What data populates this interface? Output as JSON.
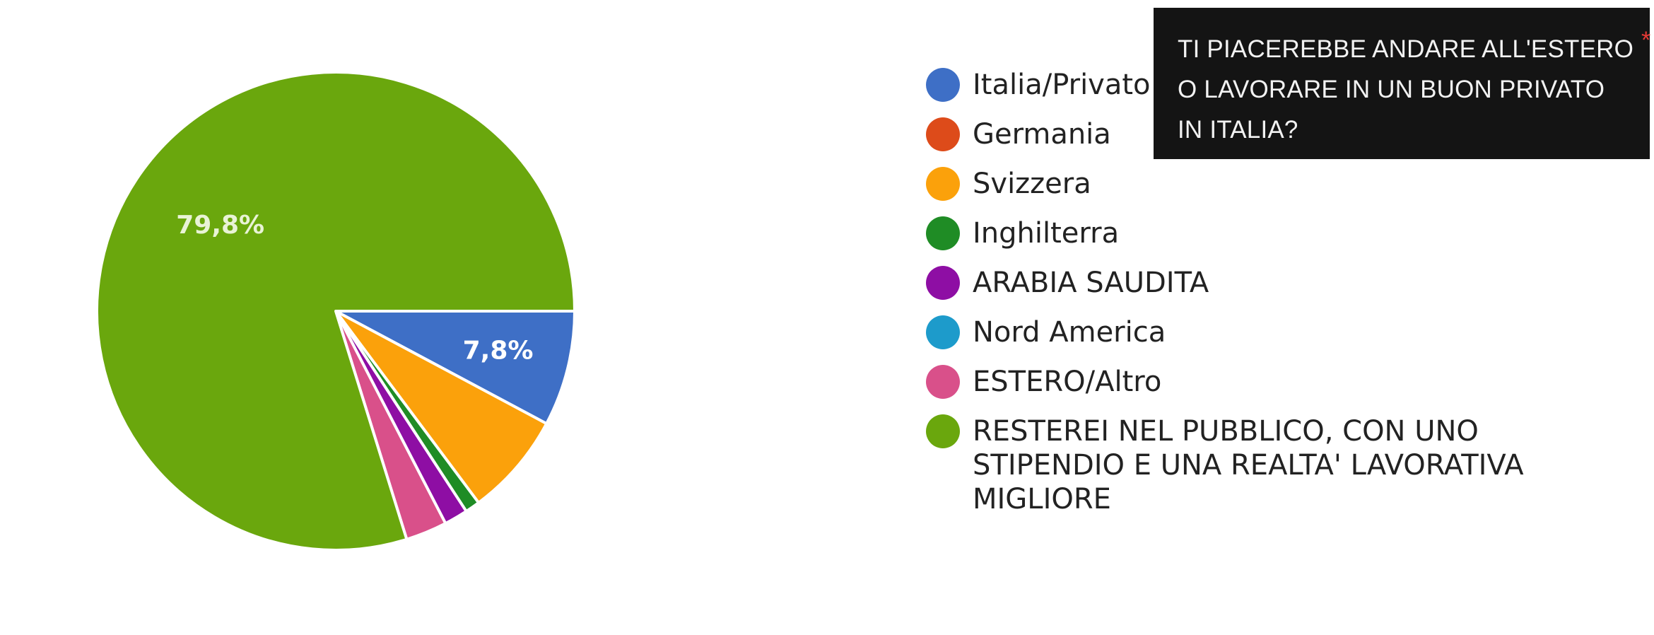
{
  "chart_data": {
    "type": "pie",
    "slices": [
      {
        "label": "Italia/Privato",
        "value": 7.8,
        "color": "#3e6fc6",
        "label_text": "7,8%"
      },
      {
        "label": "Germania",
        "value": 0,
        "color": "#dd4b1a"
      },
      {
        "label": "Svizzera",
        "value": 7.0,
        "color": "#fba10b"
      },
      {
        "label": "Inghilterra",
        "value": 1.0,
        "color": "#1f8c25"
      },
      {
        "label": "ARABIA SAUDITA",
        "value": 1.6,
        "color": "#8e0ea4"
      },
      {
        "label": "Nord America",
        "value": 0,
        "color": "#1d9bcb"
      },
      {
        "label": "ESTERO/Altro",
        "value": 2.8,
        "color": "#d9508a"
      },
      {
        "label": "RESTEREI NEL PUBBLICO, CON UNO STIPENDIO E UNA REALTA' LAVORATIVA MIGLIORE",
        "value": 79.8,
        "color": "#6aa70d",
        "label_text": "79,8%"
      }
    ]
  },
  "legend": {
    "items": [
      {
        "label": "Italia/Privato",
        "color": "#3e6fc6"
      },
      {
        "label": "Germania",
        "color": "#dd4b1a"
      },
      {
        "label": "Svizzera",
        "color": "#fba10b"
      },
      {
        "label": "Inghilterra",
        "color": "#1f8c25"
      },
      {
        "label": "ARABIA SAUDITA",
        "color": "#8e0ea4"
      },
      {
        "label": "Nord America",
        "color": "#1d9bcb"
      },
      {
        "label": "ESTERO/Altro",
        "color": "#d9508a"
      },
      {
        "label": "RESTEREI NEL PUBBLICO, CON UNO STIPENDIO E UNA REALTA' LAVORATIVA MIGLIORE",
        "color": "#6aa70d"
      }
    ]
  },
  "question": {
    "text": "TI PIACEREBBE ANDARE ALL'ESTERO O LAVORARE IN UN BUON PRIVATO IN ITALIA?",
    "required_mark": "*",
    "required_color": "#e53935"
  }
}
